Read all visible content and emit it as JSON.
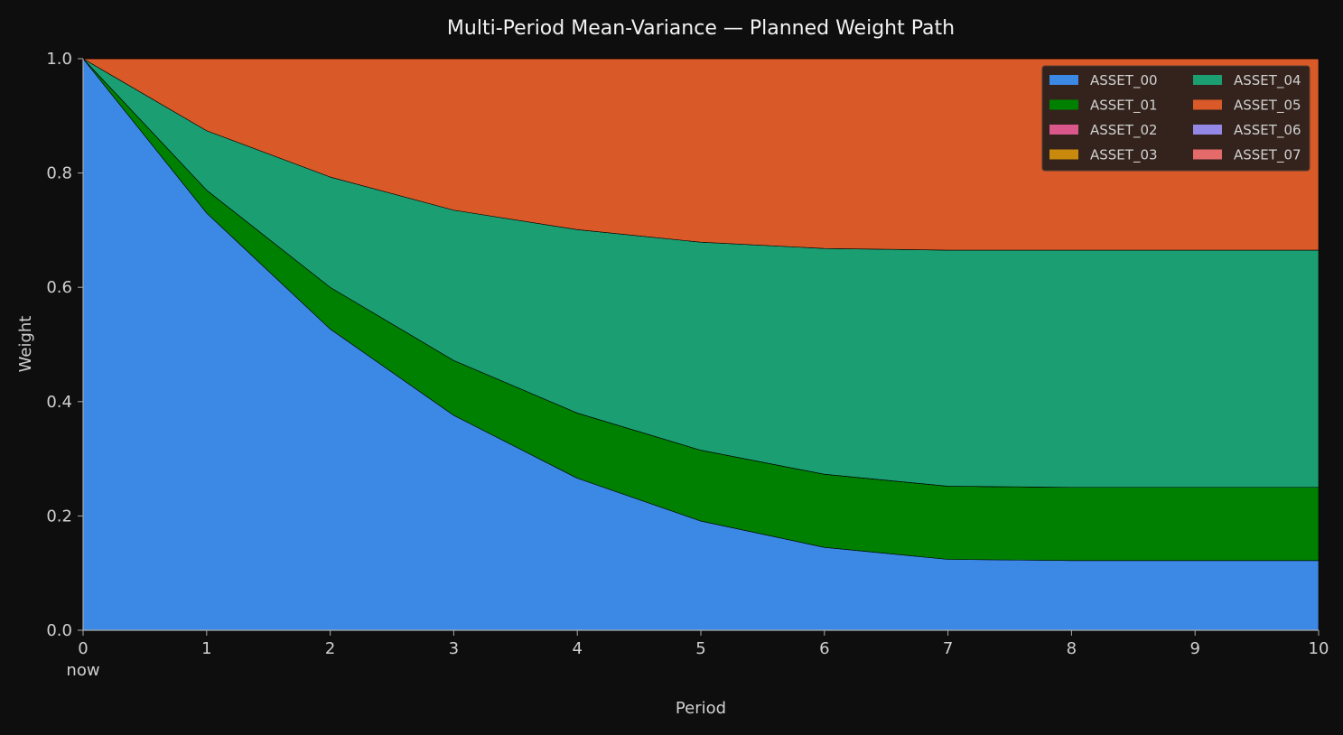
{
  "chart_data": {
    "type": "area",
    "stacked": true,
    "title": "Multi-Period Mean-Variance — Planned Weight Path",
    "xlabel": "Period",
    "ylabel": "Weight",
    "x": [
      0,
      1,
      2,
      3,
      4,
      5,
      6,
      7,
      8,
      9,
      10
    ],
    "x_tick_labels": [
      "0\nnow",
      "1",
      "2",
      "3",
      "4",
      "5",
      "6",
      "7",
      "8",
      "9",
      "10"
    ],
    "y_ticks": [
      "0.0",
      "0.2",
      "0.4",
      "0.6",
      "0.8",
      "1.0"
    ],
    "xlim": [
      0,
      10
    ],
    "ylim": [
      0,
      1
    ],
    "grid": false,
    "legend_position": "top-right",
    "legend_columns": 2,
    "series": [
      {
        "name": "ASSET_00",
        "color": "#3b88e5",
        "values": [
          1.0,
          0.73,
          0.527,
          0.376,
          0.266,
          0.191,
          0.145,
          0.124,
          0.122,
          0.122,
          0.122
        ]
      },
      {
        "name": "ASSET_01",
        "color": "#008000",
        "values": [
          0.0,
          0.04,
          0.073,
          0.096,
          0.114,
          0.124,
          0.128,
          0.128,
          0.128,
          0.128,
          0.128
        ]
      },
      {
        "name": "ASSET_02",
        "color": "#d9578a",
        "values": [
          0,
          0,
          0,
          0,
          0,
          0,
          0,
          0,
          0,
          0,
          0
        ]
      },
      {
        "name": "ASSET_03",
        "color": "#c8890c",
        "values": [
          0,
          0,
          0,
          0,
          0,
          0,
          0,
          0,
          0,
          0,
          0
        ]
      },
      {
        "name": "ASSET_04",
        "color": "#1b9e72",
        "values": [
          0.0,
          0.104,
          0.193,
          0.263,
          0.321,
          0.364,
          0.395,
          0.413,
          0.415,
          0.415,
          0.415
        ]
      },
      {
        "name": "ASSET_05",
        "color": "#d95a28",
        "values": [
          0.0,
          0.126,
          0.207,
          0.265,
          0.299,
          0.321,
          0.332,
          0.335,
          0.335,
          0.335,
          0.335
        ]
      },
      {
        "name": "ASSET_06",
        "color": "#9488e6",
        "values": [
          0,
          0,
          0,
          0,
          0,
          0,
          0,
          0,
          0,
          0,
          0
        ]
      },
      {
        "name": "ASSET_07",
        "color": "#e56a6a",
        "values": [
          0,
          0,
          0,
          0,
          0,
          0,
          0,
          0,
          0,
          0,
          0
        ]
      }
    ]
  },
  "colors": {
    "background": "#0e0e0e",
    "axis": "#aaaaaa",
    "text": "#d0d0d0",
    "title": "#f2f2f2",
    "legend_bg": "#2b211c",
    "legend_border": "#4a3a30"
  }
}
